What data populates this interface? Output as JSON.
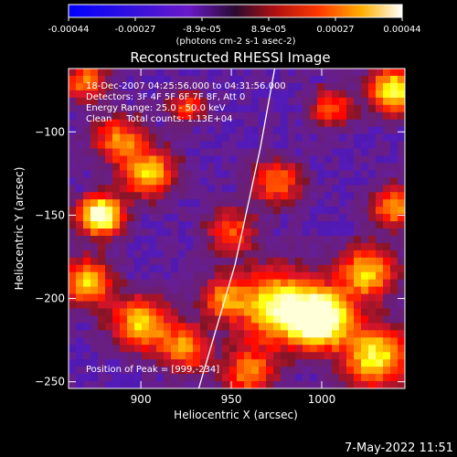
{
  "chart_data": {
    "type": "heatmap",
    "title": "Reconstructed RHESSI Image",
    "xlabel": "Heliocentric X (arcsec)",
    "ylabel": "Heliocentric Y (arcsec)",
    "xlim": [
      860,
      1046
    ],
    "ylim": [
      -254,
      -62
    ],
    "x_ticks": [
      900,
      950,
      1000
    ],
    "y_ticks": [
      -100,
      -150,
      -200,
      -250
    ],
    "colorbar": {
      "min": -0.00044,
      "max": 0.00044,
      "ticks": [
        "-0.00044",
        "-0.00027",
        "-8.9e-05",
        "8.9e-05",
        "0.00027",
        "0.00044"
      ],
      "unit_label": "(photons cm-2 s-1 asec-2)"
    },
    "info_lines": [
      "18-Dec-2007 04:25:56.000 to 04:31:56.000",
      "Detectors: 3F 4F 5F 6F 7F 8F, Att 0",
      "Energy Range: 25.0 - 50.0 keV",
      "Clean     Total counts: 1.13E+04"
    ],
    "peak_label": "Position of Peak = [999,-234]",
    "peak": {
      "x": 999,
      "y": -234
    },
    "limb_line": [
      [
        932,
        -254
      ],
      [
        952,
        -180
      ],
      [
        966,
        -110
      ],
      [
        974,
        -62
      ]
    ]
  },
  "footer": {
    "date_stamp": "7-May-2022 11:51"
  }
}
